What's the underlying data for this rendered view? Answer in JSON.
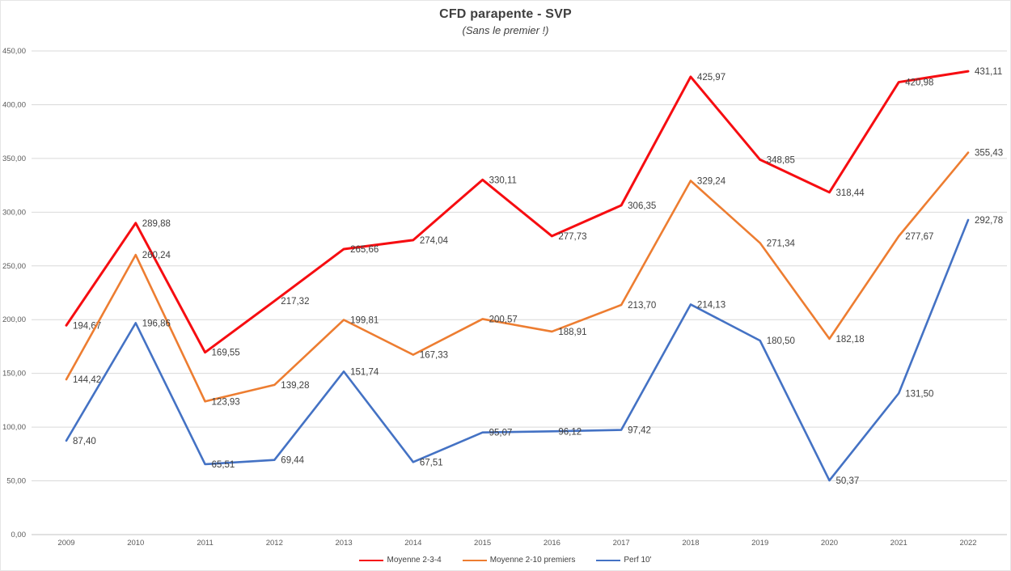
{
  "chart_data": {
    "type": "line",
    "title": "CFD parapente - SVP",
    "subtitle": "(Sans le premier !)",
    "categories": [
      "2009",
      "2010",
      "2011",
      "2012",
      "2013",
      "2014",
      "2015",
      "2016",
      "2017",
      "2018",
      "2019",
      "2020",
      "2021",
      "2022"
    ],
    "series": [
      {
        "name": "Moyenne 2-3-4",
        "color": "#f60d11",
        "values": [
          194.67,
          289.88,
          169.55,
          217.32,
          265.66,
          274.04,
          330.11,
          277.73,
          306.35,
          425.97,
          348.85,
          318.44,
          420.98,
          431.11
        ]
      },
      {
        "name": "Moyenne 2-10 premiers",
        "color": "#ed7d31",
        "values": [
          144.42,
          260.24,
          123.93,
          139.28,
          199.81,
          167.33,
          200.57,
          188.91,
          213.7,
          329.24,
          271.34,
          182.18,
          277.67,
          355.43
        ]
      },
      {
        "name": "Perf 10'",
        "color": "#4472c4",
        "values": [
          87.4,
          196.86,
          65.51,
          69.44,
          151.74,
          67.51,
          95.07,
          96.12,
          97.42,
          214.13,
          180.5,
          50.37,
          131.5,
          292.78
        ]
      }
    ],
    "ylim": [
      0,
      450
    ],
    "ytick_step": 50,
    "ytick_labels": [
      "0,00",
      "50,00",
      "100,00",
      "150,00",
      "200,00",
      "250,00",
      "300,00",
      "350,00",
      "400,00",
      "450,00"
    ],
    "decimal_separator": ",",
    "grid": true,
    "legend_position": "bottom",
    "label_color": "#3f3f3f",
    "axis_text_color": "#595959",
    "gridline_color": "#d9d9d9",
    "axis_line_color": "#c3c3c3"
  }
}
